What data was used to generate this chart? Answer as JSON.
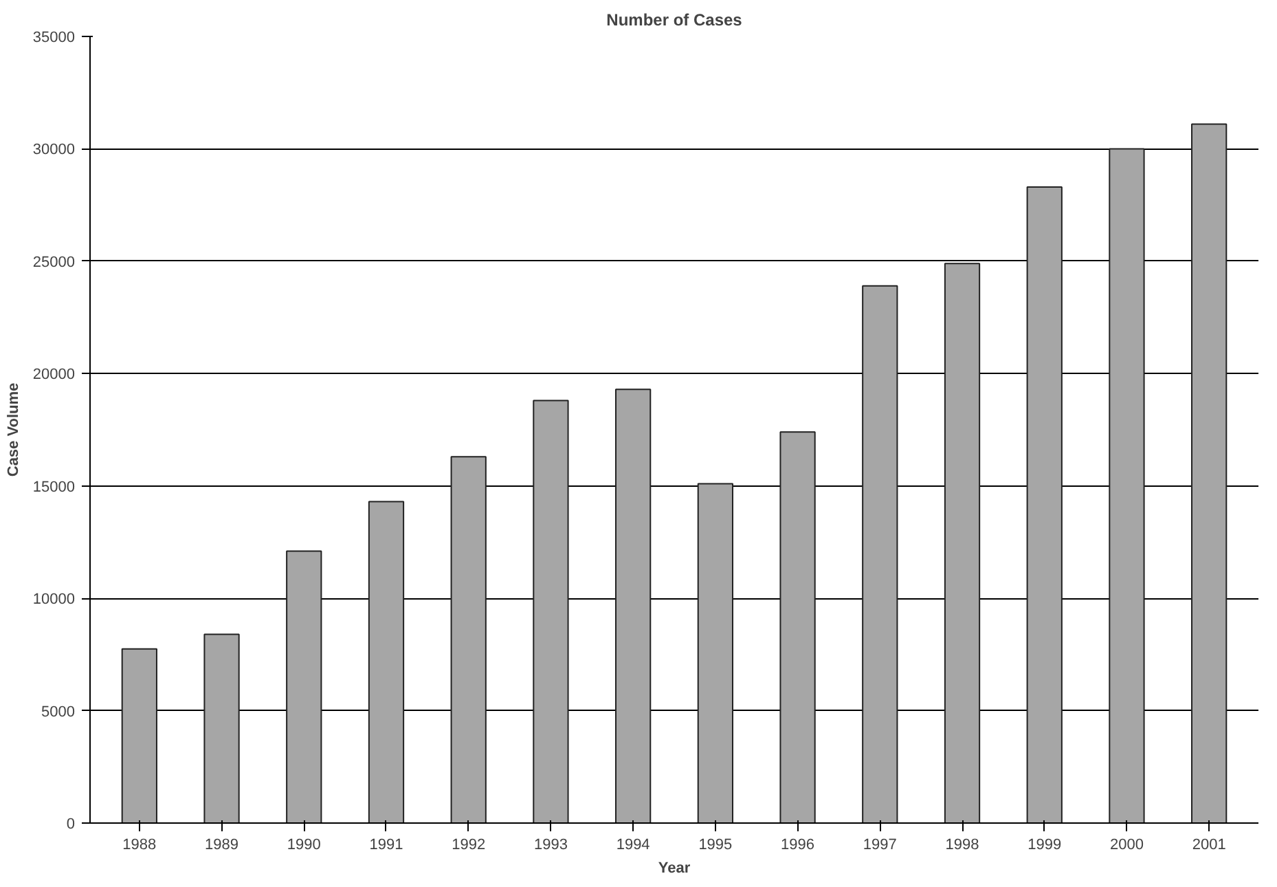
{
  "chart_data": {
    "type": "bar",
    "title": "Number of Cases",
    "xlabel": "Year",
    "ylabel": "Case Volume",
    "categories": [
      "1988",
      "1989",
      "1990",
      "1991",
      "1992",
      "1993",
      "1994",
      "1995",
      "1996",
      "1997",
      "1998",
      "1999",
      "2000",
      "2001"
    ],
    "values": [
      7750,
      8400,
      12100,
      14300,
      16300,
      18800,
      19300,
      15100,
      17400,
      23900,
      24900,
      28300,
      30000,
      31100
    ],
    "color": "#a6a6a6",
    "ylim": [
      0,
      35000
    ],
    "yticks": [
      0,
      5000,
      10000,
      15000,
      20000,
      25000,
      30000,
      35000
    ],
    "grid": "y"
  }
}
